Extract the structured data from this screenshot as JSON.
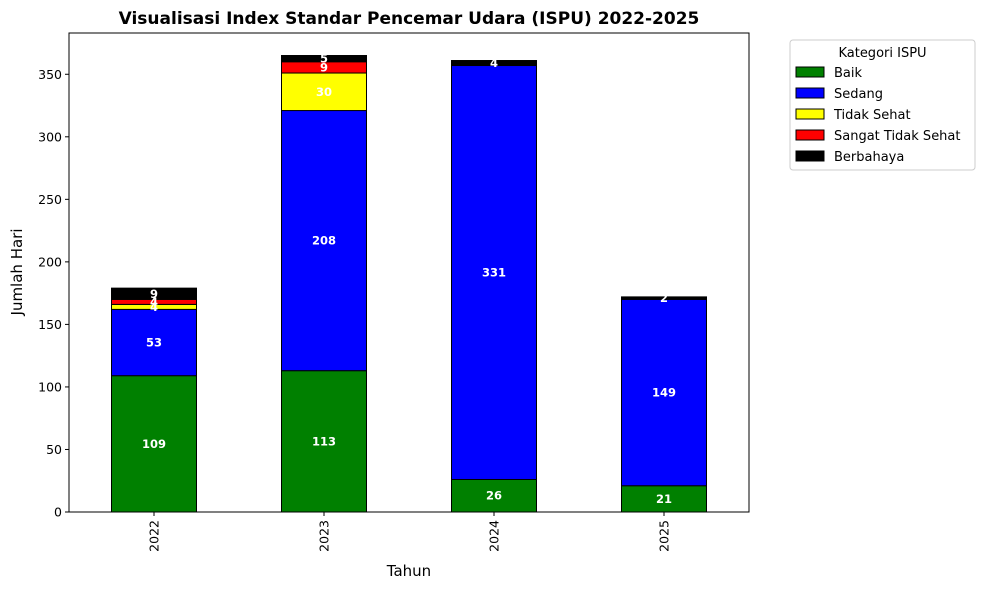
{
  "chart_data": {
    "type": "bar",
    "stacked": true,
    "title": "Visualisasi Index Standar Pencemar Udara (ISPU) 2022-2025",
    "xlabel": "Tahun",
    "ylabel": "Jumlah Hari",
    "categories": [
      "2022",
      "2023",
      "2024",
      "2025"
    ],
    "ylim": [
      0,
      383
    ],
    "yticks": [
      0,
      50,
      100,
      150,
      200,
      250,
      300,
      350
    ],
    "grid": false,
    "legend": {
      "title": "Kategori ISPU",
      "placement": "outside-top-right"
    },
    "series": [
      {
        "name": "Baik",
        "color": "#008000",
        "values": [
          109,
          113,
          26,
          21
        ]
      },
      {
        "name": "Sedang",
        "color": "#0000ff",
        "values": [
          53,
          208,
          331,
          149
        ]
      },
      {
        "name": "Tidak Sehat",
        "color": "#ffff00",
        "values": [
          4,
          30,
          0,
          0
        ]
      },
      {
        "name": "Sangat Tidak Sehat",
        "color": "#ff0000",
        "values": [
          4,
          9,
          0,
          0
        ]
      },
      {
        "name": "Berbahaya",
        "color": "#000000",
        "values": [
          9,
          5,
          4,
          2
        ]
      }
    ]
  }
}
